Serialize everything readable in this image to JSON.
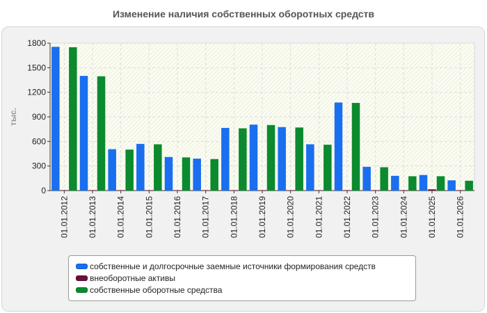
{
  "chart_data": {
    "type": "bar",
    "title": "Изменение наличия собственных оборотных средств",
    "ylabel": "тыс.",
    "xlabel": "",
    "ylim": [
      0,
      1800
    ],
    "yticks": [
      0,
      300,
      600,
      900,
      1200,
      1500,
      1800
    ],
    "grid": true,
    "legend_position": "bottom",
    "categories": [
      "01.01.2012",
      "01.01.2013",
      "01.01.2014",
      "01.01.2015",
      "01.01.2016",
      "01.01.2017",
      "01.01.2018",
      "01.01.2019",
      "01.01.2020",
      "01.01.2021",
      "01.01.2022",
      "01.01.2023",
      "01.01.2024",
      "01.01.2025",
      "01.01.2026"
    ],
    "series": [
      {
        "name": "собственные и долгосрочные заемные источники формирования средств",
        "color": "#1a6ef0",
        "values": [
          1755,
          1400,
          505,
          570,
          410,
          390,
          765,
          805,
          775,
          565,
          1075,
          290,
          180,
          190,
          125
        ]
      },
      {
        "name": "внеоборотные активы",
        "color": "#6b0f3a",
        "values": [
          5,
          5,
          5,
          5,
          5,
          5,
          5,
          5,
          5,
          5,
          5,
          5,
          5,
          15,
          5
        ]
      },
      {
        "name": "собственные оборотные средства",
        "color": "#0b8a2e",
        "values": [
          1750,
          1395,
          500,
          565,
          405,
          385,
          760,
          800,
          770,
          560,
          1070,
          285,
          175,
          175,
          120
        ]
      }
    ]
  }
}
